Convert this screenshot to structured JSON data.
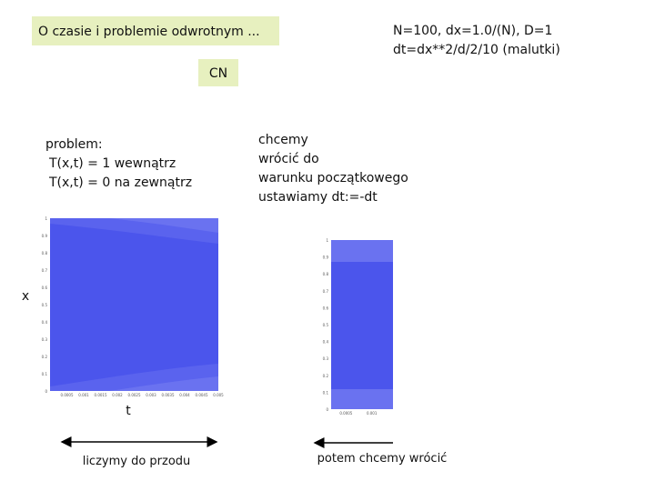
{
  "header": {
    "title": "O czasie i problemie odwrotnym ...",
    "method": "CN",
    "params": [
      "N=100, dx=1.0/(N), D=1",
      "dt=dx**2/d/2/10 (malutki)"
    ]
  },
  "left_note": {
    "lines": [
      "problem:",
      "T(x,t) = 1 wewnątrz",
      "T(x,t) = 0 na zewnątrz"
    ]
  },
  "right_note": {
    "lines": [
      "chcemy",
      "wrócić do",
      "warunku początkowego",
      "ustawiamy dt:=-dt"
    ]
  },
  "plots": [
    {
      "yticks": [
        "1",
        "0.9",
        "0.8",
        "0.7",
        "0.6",
        "0.5",
        "0.4",
        "0.3",
        "0.2",
        "0.1",
        "0"
      ],
      "xticks": [
        "0.0005",
        "0.001",
        "0.0015",
        "0.002",
        "0.0025",
        "0.003",
        "0.0035",
        "0.004",
        "0.0045",
        "0.005"
      ]
    },
    {
      "yticks": [
        "1",
        "0.9",
        "0.8",
        "0.7",
        "0.6",
        "0.5",
        "0.4",
        "0.3",
        "0.2",
        "0.1",
        "0"
      ],
      "xticks": [
        "0.0005",
        "0.001"
      ]
    }
  ],
  "axis_labels": {
    "x": "x",
    "t": "t"
  },
  "captions": [
    "liczymy do przodu",
    "potem chcemy wrócić"
  ]
}
